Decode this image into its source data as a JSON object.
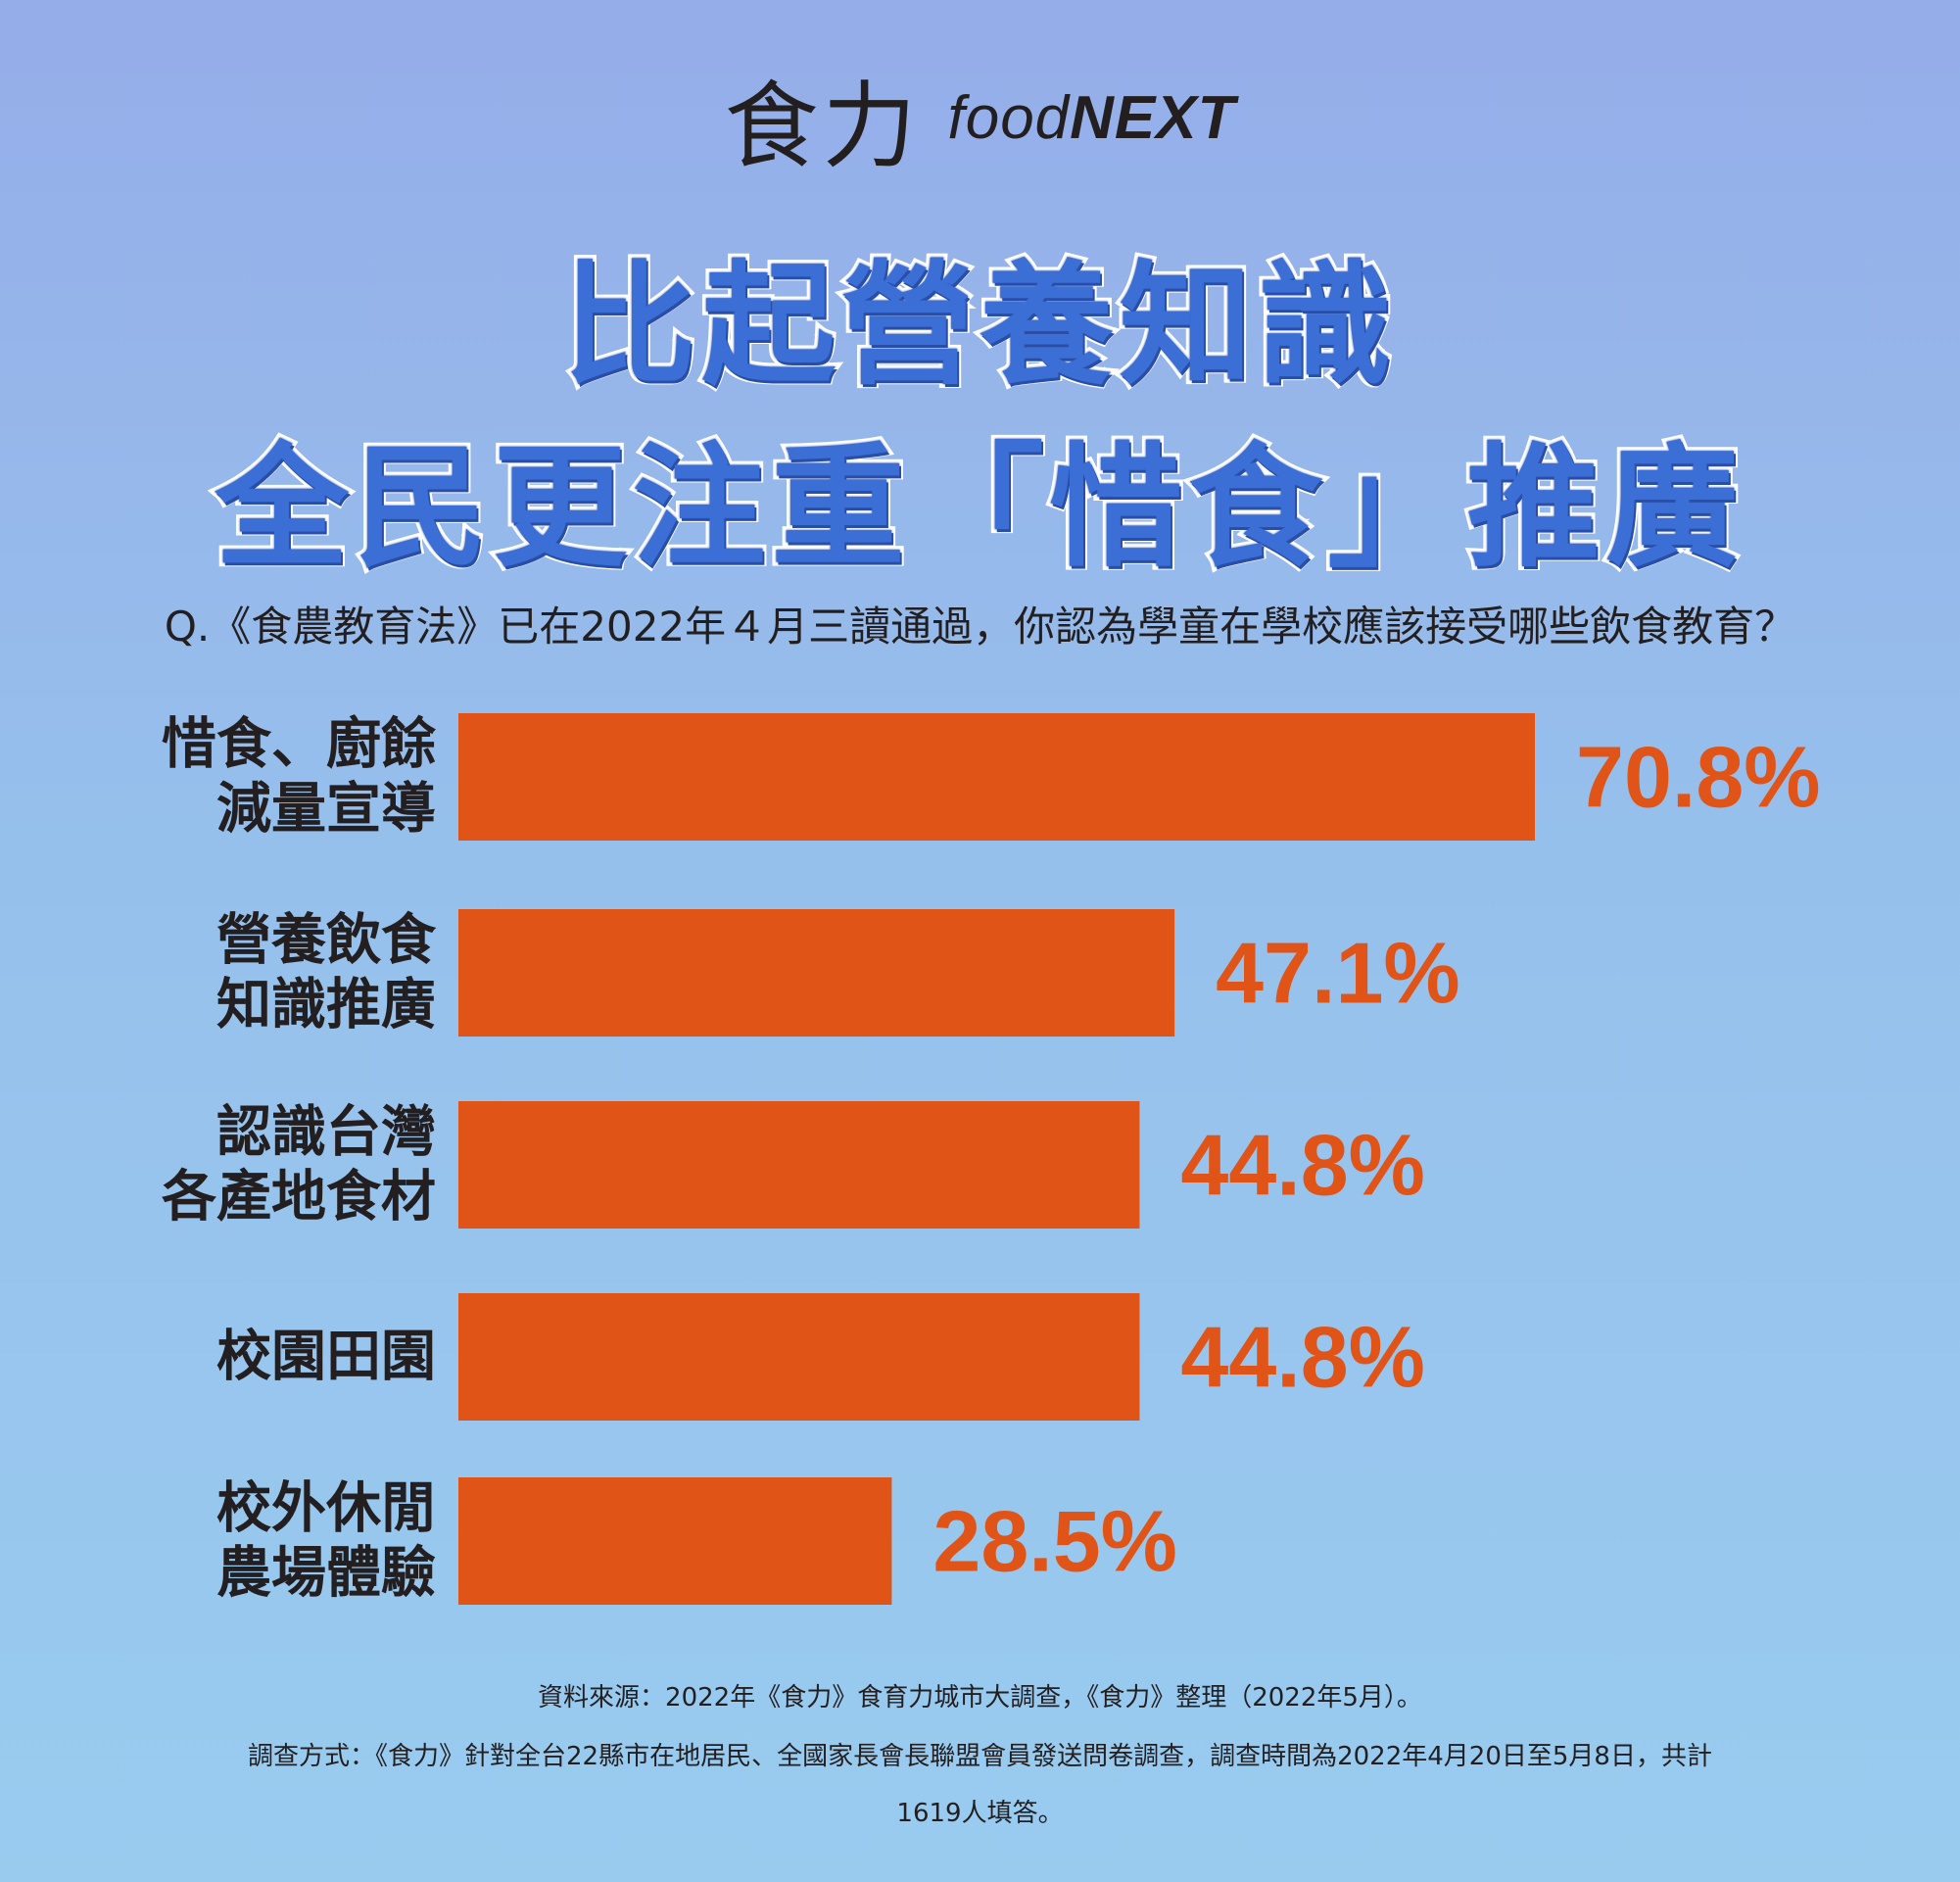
{
  "brand": {
    "name_zh": "食力",
    "name_en_prefix": "food",
    "name_en_suffix": "NEXT"
  },
  "title": {
    "line1": "比起營養知識",
    "line2": "全民更注重「惜食」推廣"
  },
  "question": "Q.《食農教育法》已在2022年４月三讀通過，你認為學童在學校應該接受哪些飲食教育？",
  "chart_data": {
    "type": "bar",
    "orientation": "horizontal",
    "categories": [
      [
        "惜食、廚餘",
        "減量宣導"
      ],
      [
        "營養飲食",
        "知識推廣"
      ],
      [
        "認識台灣",
        "各產地食材"
      ],
      [
        "校園田園"
      ],
      [
        "校外休閒",
        "農場體驗"
      ]
    ],
    "values": [
      70.8,
      47.1,
      44.8,
      44.8,
      28.5
    ],
    "value_labels": [
      "70.8%",
      "47.1%",
      "44.8%",
      "44.8%",
      "28.5%"
    ],
    "unit": "%",
    "bar_color": "#e15418",
    "label_color": "#e15418",
    "xlim": [
      0,
      100
    ],
    "grid": false,
    "legend": "none"
  },
  "footnotes": {
    "source": "資料來源：2022年《食力》食育力城市大調查，《食力》整理（2022年5月）。",
    "method_line1": "調查方式：《食力》針對全台22縣市在地居民、全國家長會長聯盟會員發送問卷調查，調查時間為2022年4月20日至5月8日，共計",
    "method_line2": "1619人填答。"
  }
}
